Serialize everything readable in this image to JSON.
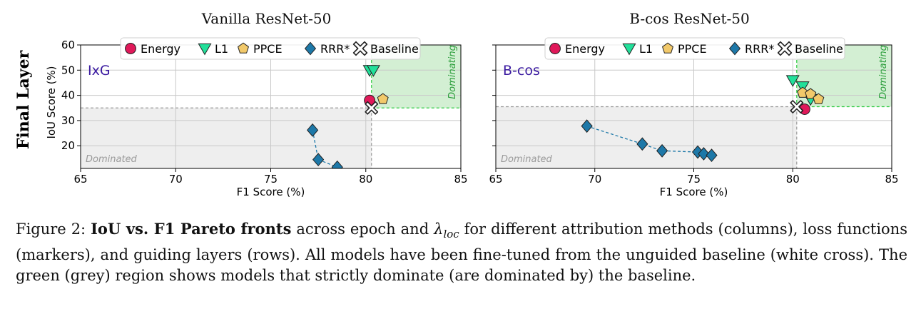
{
  "row_label": "Final Layer",
  "legend": {
    "Energy": {
      "color": "#e0195a",
      "marker": "circle"
    },
    "L1": {
      "color": "#22e09a",
      "marker": "triangle-down"
    },
    "PPCE": {
      "color": "#f2c96a",
      "marker": "pentagon"
    },
    "RRR*": {
      "color": "#1d78a8",
      "marker": "diamond"
    },
    "Baseline": {
      "color": "#ffffff",
      "marker": "cross"
    }
  },
  "region_labels": {
    "dominating": "Dominating",
    "dominated": "Dominated"
  },
  "region_colors": {
    "dominating": "#d3efd3",
    "dominating_line": "#2ecc40",
    "dominated": "#eeeeee"
  },
  "chart_data": [
    {
      "type": "scatter",
      "title": "Vanilla ResNet-50",
      "method_label": "IxG",
      "xlabel": "F1 Score (%)",
      "ylabel": "IoU Score (%)",
      "xlim": [
        65,
        85
      ],
      "ylim": [
        11,
        60
      ],
      "xticks": [
        65,
        70,
        75,
        80,
        85
      ],
      "yticks": [
        20,
        30,
        40,
        50,
        60
      ],
      "baseline": {
        "x": 80.3,
        "y": 35
      },
      "series": [
        {
          "name": "Energy",
          "points": [
            [
              80.2,
              38
            ]
          ]
        },
        {
          "name": "L1",
          "points": [
            [
              80.2,
              50
            ],
            [
              80.4,
              50
            ]
          ]
        },
        {
          "name": "PPCE",
          "points": [
            [
              80.9,
              38.5
            ]
          ]
        },
        {
          "name": "RRR*",
          "points": [
            [
              77.2,
              26.2
            ],
            [
              77.5,
              14.5
            ],
            [
              78.5,
              11.5
            ]
          ],
          "connected": true
        },
        {
          "name": "Baseline",
          "points": [
            [
              80.3,
              35
            ]
          ]
        }
      ]
    },
    {
      "type": "scatter",
      "title": "B-cos ResNet-50",
      "method_label": "B-cos",
      "xlabel": "F1 Score (%)",
      "ylabel": "",
      "xlim": [
        65,
        85
      ],
      "ylim": [
        11,
        60
      ],
      "xticks": [
        65,
        70,
        75,
        80,
        85
      ],
      "yticks": [],
      "baseline": {
        "x": 80.2,
        "y": 35.5
      },
      "series": [
        {
          "name": "Energy",
          "points": [
            [
              80.6,
              34.5
            ]
          ]
        },
        {
          "name": "L1",
          "points": [
            [
              80,
              46
            ],
            [
              80.5,
              43.5
            ],
            [
              80.9,
              38.5
            ]
          ]
        },
        {
          "name": "PPCE",
          "points": [
            [
              80.5,
              41
            ],
            [
              80.9,
              40.5
            ],
            [
              81.3,
              38.5
            ]
          ]
        },
        {
          "name": "RRR*",
          "points": [
            [
              69.6,
              27.8
            ],
            [
              72.4,
              20.7
            ],
            [
              73.4,
              18
            ],
            [
              75.2,
              17.5
            ],
            [
              75.5,
              16.8
            ],
            [
              75.9,
              16.2
            ]
          ],
          "connected": true
        },
        {
          "name": "Baseline",
          "points": [
            [
              80.2,
              35.5
            ]
          ]
        }
      ]
    }
  ],
  "caption": {
    "prefix": "Figure 2: ",
    "bold": "IoU vs. F1 Pareto fronts",
    "text": " across epoch and λ_loc for different attribution methods (columns), loss functions (markers), and guiding layers (rows). All models have been fine-tuned from the unguided baseline (white cross). The green (grey) region shows models that strictly dominate (are dominated by) the baseline."
  }
}
